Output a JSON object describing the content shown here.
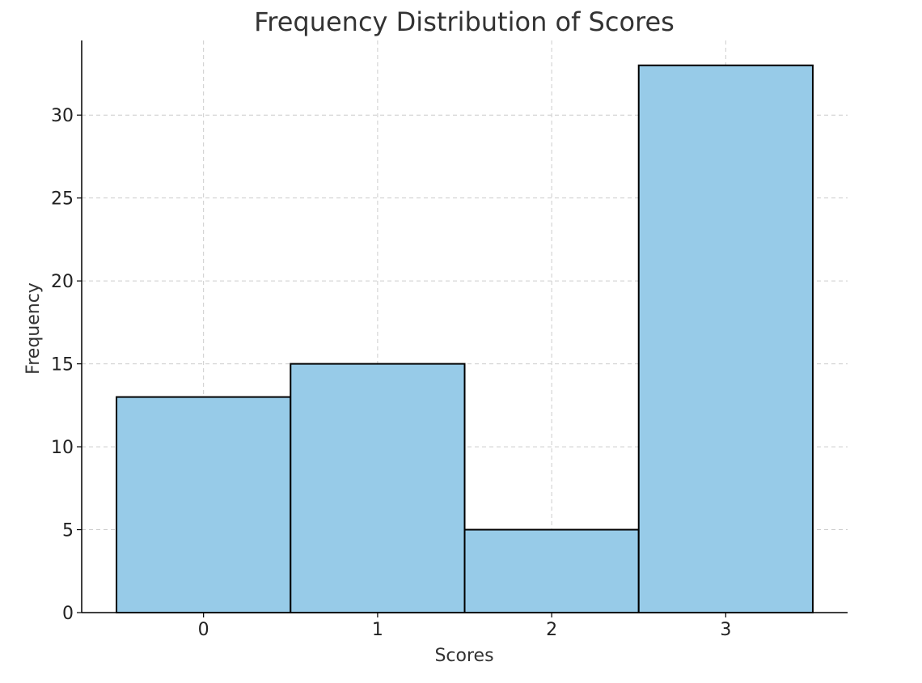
{
  "chart_data": {
    "type": "bar",
    "title": "Frequency Distribution of Scores",
    "xlabel": "Scores",
    "ylabel": "Frequency",
    "categories": [
      "0",
      "1",
      "2",
      "3"
    ],
    "values": [
      13,
      15,
      5,
      33
    ],
    "ylim": [
      0,
      34.5
    ],
    "yticks": [
      0,
      5,
      10,
      15,
      20,
      25,
      30
    ],
    "grid": true,
    "colors": {
      "bar_fill": "#97cbe8",
      "bar_edge": "#000000"
    }
  }
}
